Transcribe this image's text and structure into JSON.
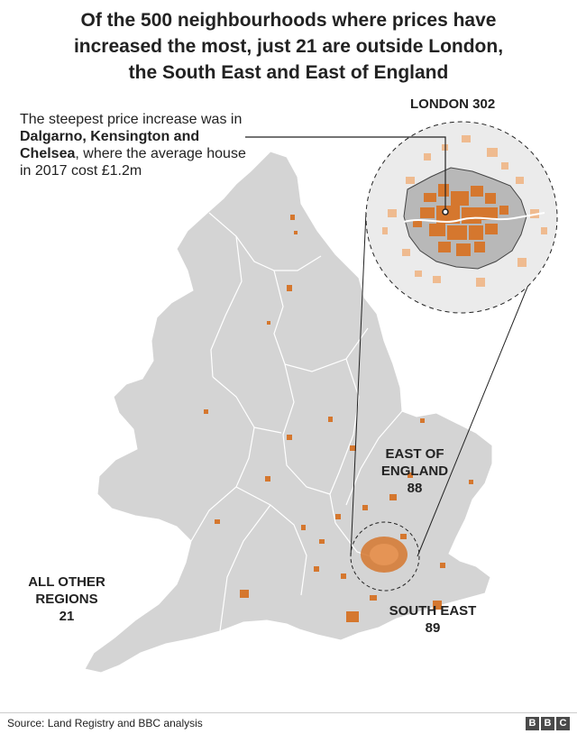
{
  "title": {
    "line1": "Of the 500 neighbourhoods where prices have",
    "line2": "increased the most, just 21 are outside London,",
    "line3": "the South East and East of England"
  },
  "annotation": {
    "prefix": "The steepest price increase was in ",
    "place": "Dalgarno, Kensington and Chelsea",
    "suffix": ", where the average house in 2017 cost £1.2m"
  },
  "regions": {
    "london": "LONDON 302",
    "east_of_england": {
      "line1": "EAST OF",
      "line2": "ENGLAND",
      "count": "88"
    },
    "south_east": {
      "line1": "SOUTH EAST",
      "count": "89"
    },
    "other": {
      "line1": "ALL OTHER",
      "line2": "REGIONS",
      "count": "21"
    }
  },
  "footer": {
    "source": "Source: Land Registry and BBC analysis",
    "logo": [
      "B",
      "B",
      "C"
    ]
  },
  "colors": {
    "land": "#d4d4d4",
    "highlight": "#d5772e",
    "highlight_light": "#efbb90",
    "london_fill": "#b8b8b8",
    "circle_bg": "#ebebeb"
  }
}
